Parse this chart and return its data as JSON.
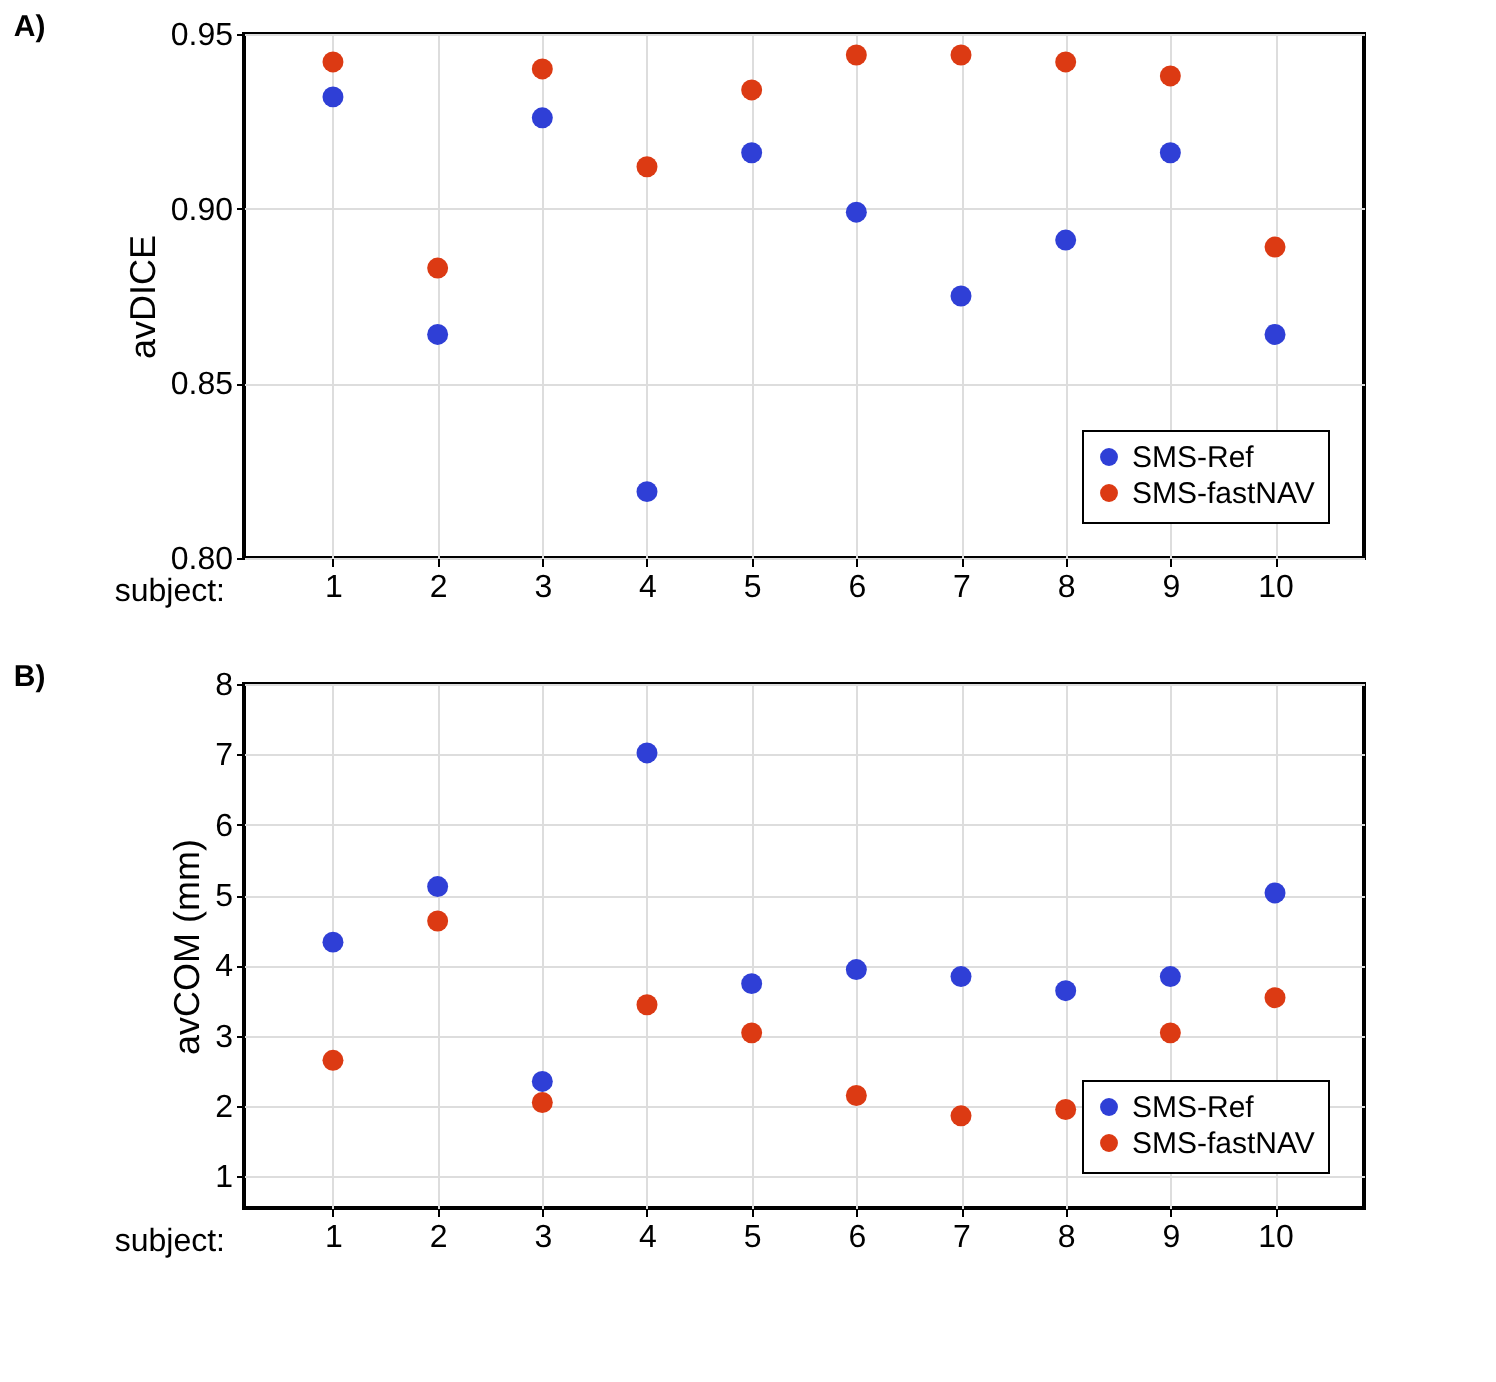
{
  "chart_data": [
    {
      "type": "scatter",
      "title": "A)",
      "xlabel": "subject:",
      "ylabel": "avDICE",
      "categories": [
        "1",
        "2",
        "3",
        "4",
        "5",
        "6",
        "7",
        "8",
        "9",
        "10"
      ],
      "ylim": [
        0.8,
        0.95
      ],
      "yticks": [
        {
          "value": 0.8,
          "label": "0.80"
        },
        0.85,
        {
          "value": 0.9,
          "label": "0.90"
        },
        0.95
      ],
      "grid": true,
      "legend": "bottom right",
      "marker": "circle",
      "series": [
        {
          "name": "SMS-Ref",
          "color": "#2f3fd6",
          "values": [
            0.932,
            0.864,
            0.926,
            0.819,
            0.916,
            0.899,
            0.875,
            0.891,
            0.916,
            0.864
          ]
        },
        {
          "name": "SMS-fastNAV",
          "color": "#dc3a13",
          "values": [
            0.942,
            0.883,
            0.94,
            0.912,
            0.934,
            0.944,
            0.944,
            0.942,
            0.938,
            0.889
          ]
        }
      ]
    },
    {
      "type": "scatter",
      "title": "B)",
      "xlabel": "subject:",
      "ylabel": "avCOM (mm)",
      "categories": [
        "1",
        "2",
        "3",
        "4",
        "5",
        "6",
        "7",
        "8",
        "9",
        "10"
      ],
      "ylim": [
        0.55,
        8
      ],
      "yticks": [
        1,
        2,
        3,
        4,
        5,
        6,
        7,
        8
      ],
      "grid": true,
      "legend": "bottom right",
      "marker": "circle",
      "series": [
        {
          "name": "SMS-Ref",
          "color": "#2f3fd6",
          "values": [
            4.33,
            5.12,
            2.35,
            7.02,
            3.74,
            3.94,
            3.84,
            3.64,
            3.84,
            5.03
          ]
        },
        {
          "name": "SMS-fastNAV",
          "color": "#dc3a13",
          "values": [
            2.65,
            4.63,
            2.05,
            3.44,
            3.04,
            2.15,
            1.86,
            1.95,
            3.04,
            3.54
          ]
        }
      ]
    }
  ]
}
